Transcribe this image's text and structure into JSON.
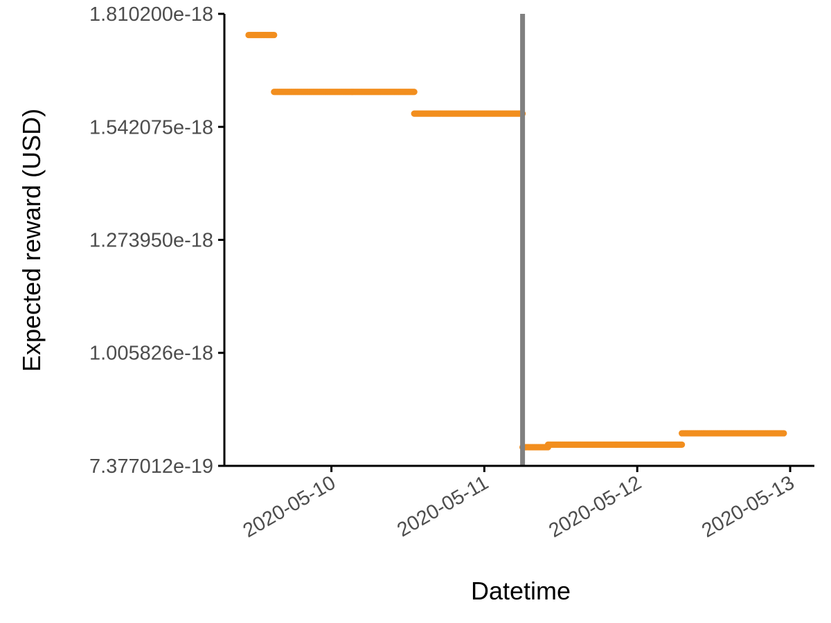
{
  "chart_data": {
    "type": "scatter",
    "title": "",
    "xlabel": "Datetime",
    "ylabel": "Expected reward (USD)",
    "x_axis_type": "datetime",
    "xlim": [
      "2020-05-09 07:12",
      "2020-05-13 03:48"
    ],
    "ylim": [
      7.377012e-19,
      1.8102e-18
    ],
    "y_ticks": [
      {
        "value": 7.377012e-19,
        "label": "7.377012e-19"
      },
      {
        "value": 1.005826e-18,
        "label": "1.005826e-18"
      },
      {
        "value": 1.27395e-18,
        "label": "1.273950e-18"
      },
      {
        "value": 1.542075e-18,
        "label": "1.542075e-18"
      },
      {
        "value": 1.8102e-18,
        "label": "1.810200e-18"
      }
    ],
    "x_ticks": [
      {
        "value": "2020-05-10 00:00",
        "label": "2020-05-10"
      },
      {
        "value": "2020-05-11 00:00",
        "label": "2020-05-11"
      },
      {
        "value": "2020-05-12 00:00",
        "label": "2020-05-12"
      },
      {
        "value": "2020-05-13 00:00",
        "label": "2020-05-13"
      }
    ],
    "x_tick_label_rotation": -30,
    "marker_color": "#f28e1e",
    "vline": {
      "x": "2020-05-11 06:00",
      "color": "#808080"
    },
    "grid": false,
    "legend": "none",
    "series": [
      {
        "segments": [
          {
            "x_start": "2020-05-09 11:00",
            "x_end": "2020-05-09 15:00",
            "y": 1.76e-18
          },
          {
            "x_start": "2020-05-09 15:00",
            "x_end": "2020-05-10 13:00",
            "y": 1.625e-18
          },
          {
            "x_start": "2020-05-10 13:00",
            "x_end": "2020-05-11 06:00",
            "y": 1.5735e-18
          },
          {
            "x_start": "2020-05-11 06:00",
            "x_end": "2020-05-11 10:00",
            "y": 7.82e-19
          },
          {
            "x_start": "2020-05-11 10:00",
            "x_end": "2020-05-12 07:00",
            "y": 7.88e-19
          },
          {
            "x_start": "2020-05-12 07:00",
            "x_end": "2020-05-12 23:00",
            "y": 8.15e-19
          }
        ]
      }
    ]
  }
}
